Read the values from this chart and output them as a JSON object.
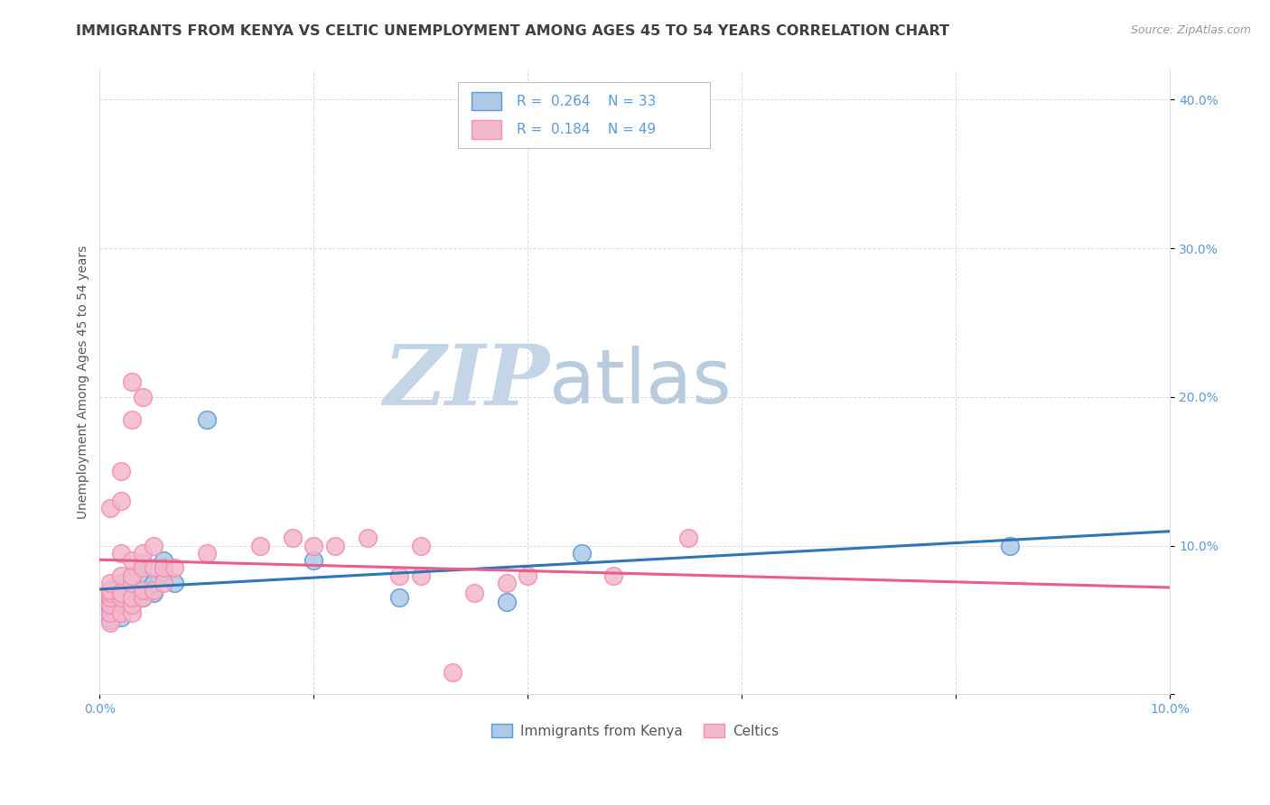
{
  "title": "IMMIGRANTS FROM KENYA VS CELTIC UNEMPLOYMENT AMONG AGES 45 TO 54 YEARS CORRELATION CHART",
  "source": "Source: ZipAtlas.com",
  "ylabel": "Unemployment Among Ages 45 to 54 years",
  "xlim": [
    0.0,
    0.1
  ],
  "ylim": [
    0.0,
    0.42
  ],
  "xticks": [
    0.0,
    0.02,
    0.04,
    0.06,
    0.08,
    0.1
  ],
  "xticklabels_left": [
    "0.0%",
    "",
    "",
    "",
    "",
    "10.0%"
  ],
  "yticks": [
    0.0,
    0.1,
    0.2,
    0.3,
    0.4
  ],
  "yticklabels_right": [
    "",
    "10.0%",
    "20.0%",
    "30.0%",
    "40.0%"
  ],
  "legend_r_blue": "R = 0.264",
  "legend_n_blue": "N = 33",
  "legend_r_pink": "R = 0.184",
  "legend_n_pink": "N = 49",
  "blue_color": "#aec9e8",
  "pink_color": "#f4b8cb",
  "blue_edge_color": "#5b9bd5",
  "pink_edge_color": "#f48fb1",
  "blue_line_color": "#2e75b6",
  "pink_line_color": "#e85d8a",
  "blue_scatter": [
    [
      0.001,
      0.05
    ],
    [
      0.001,
      0.055
    ],
    [
      0.001,
      0.058
    ],
    [
      0.001,
      0.06
    ],
    [
      0.001,
      0.062
    ],
    [
      0.001,
      0.065
    ],
    [
      0.001,
      0.068
    ],
    [
      0.001,
      0.07
    ],
    [
      0.002,
      0.052
    ],
    [
      0.002,
      0.06
    ],
    [
      0.002,
      0.065
    ],
    [
      0.002,
      0.07
    ],
    [
      0.002,
      0.075
    ],
    [
      0.003,
      0.06
    ],
    [
      0.003,
      0.065
    ],
    [
      0.003,
      0.07
    ],
    [
      0.003,
      0.075
    ],
    [
      0.003,
      0.08
    ],
    [
      0.004,
      0.065
    ],
    [
      0.004,
      0.07
    ],
    [
      0.004,
      0.08
    ],
    [
      0.004,
      0.088
    ],
    [
      0.005,
      0.068
    ],
    [
      0.005,
      0.075
    ],
    [
      0.006,
      0.082
    ],
    [
      0.006,
      0.09
    ],
    [
      0.007,
      0.075
    ],
    [
      0.01,
      0.185
    ],
    [
      0.02,
      0.09
    ],
    [
      0.028,
      0.065
    ],
    [
      0.038,
      0.062
    ],
    [
      0.045,
      0.095
    ],
    [
      0.085,
      0.1
    ]
  ],
  "pink_scatter": [
    [
      0.001,
      0.048
    ],
    [
      0.001,
      0.055
    ],
    [
      0.001,
      0.06
    ],
    [
      0.001,
      0.065
    ],
    [
      0.001,
      0.068
    ],
    [
      0.001,
      0.07
    ],
    [
      0.001,
      0.075
    ],
    [
      0.001,
      0.125
    ],
    [
      0.002,
      0.055
    ],
    [
      0.002,
      0.065
    ],
    [
      0.002,
      0.068
    ],
    [
      0.002,
      0.08
    ],
    [
      0.002,
      0.095
    ],
    [
      0.002,
      0.13
    ],
    [
      0.002,
      0.15
    ],
    [
      0.003,
      0.055
    ],
    [
      0.003,
      0.06
    ],
    [
      0.003,
      0.065
    ],
    [
      0.003,
      0.075
    ],
    [
      0.003,
      0.08
    ],
    [
      0.003,
      0.09
    ],
    [
      0.003,
      0.185
    ],
    [
      0.003,
      0.21
    ],
    [
      0.004,
      0.065
    ],
    [
      0.004,
      0.07
    ],
    [
      0.004,
      0.085
    ],
    [
      0.004,
      0.095
    ],
    [
      0.004,
      0.2
    ],
    [
      0.005,
      0.07
    ],
    [
      0.005,
      0.085
    ],
    [
      0.005,
      0.1
    ],
    [
      0.006,
      0.075
    ],
    [
      0.006,
      0.085
    ],
    [
      0.007,
      0.085
    ],
    [
      0.01,
      0.095
    ],
    [
      0.015,
      0.1
    ],
    [
      0.018,
      0.105
    ],
    [
      0.02,
      0.1
    ],
    [
      0.022,
      0.1
    ],
    [
      0.025,
      0.105
    ],
    [
      0.028,
      0.08
    ],
    [
      0.03,
      0.08
    ],
    [
      0.03,
      0.1
    ],
    [
      0.033,
      0.015
    ],
    [
      0.035,
      0.068
    ],
    [
      0.038,
      0.075
    ],
    [
      0.04,
      0.08
    ],
    [
      0.048,
      0.08
    ],
    [
      0.055,
      0.105
    ]
  ],
  "background_color": "#ffffff",
  "grid_color": "#cccccc",
  "title_fontsize": 11.5,
  "axis_label_fontsize": 10,
  "tick_fontsize": 10,
  "watermark_zip": "ZIP",
  "watermark_atlas": "atlas",
  "watermark_color_zip": "#c5d5e8",
  "watermark_color_atlas": "#b8ccdd"
}
